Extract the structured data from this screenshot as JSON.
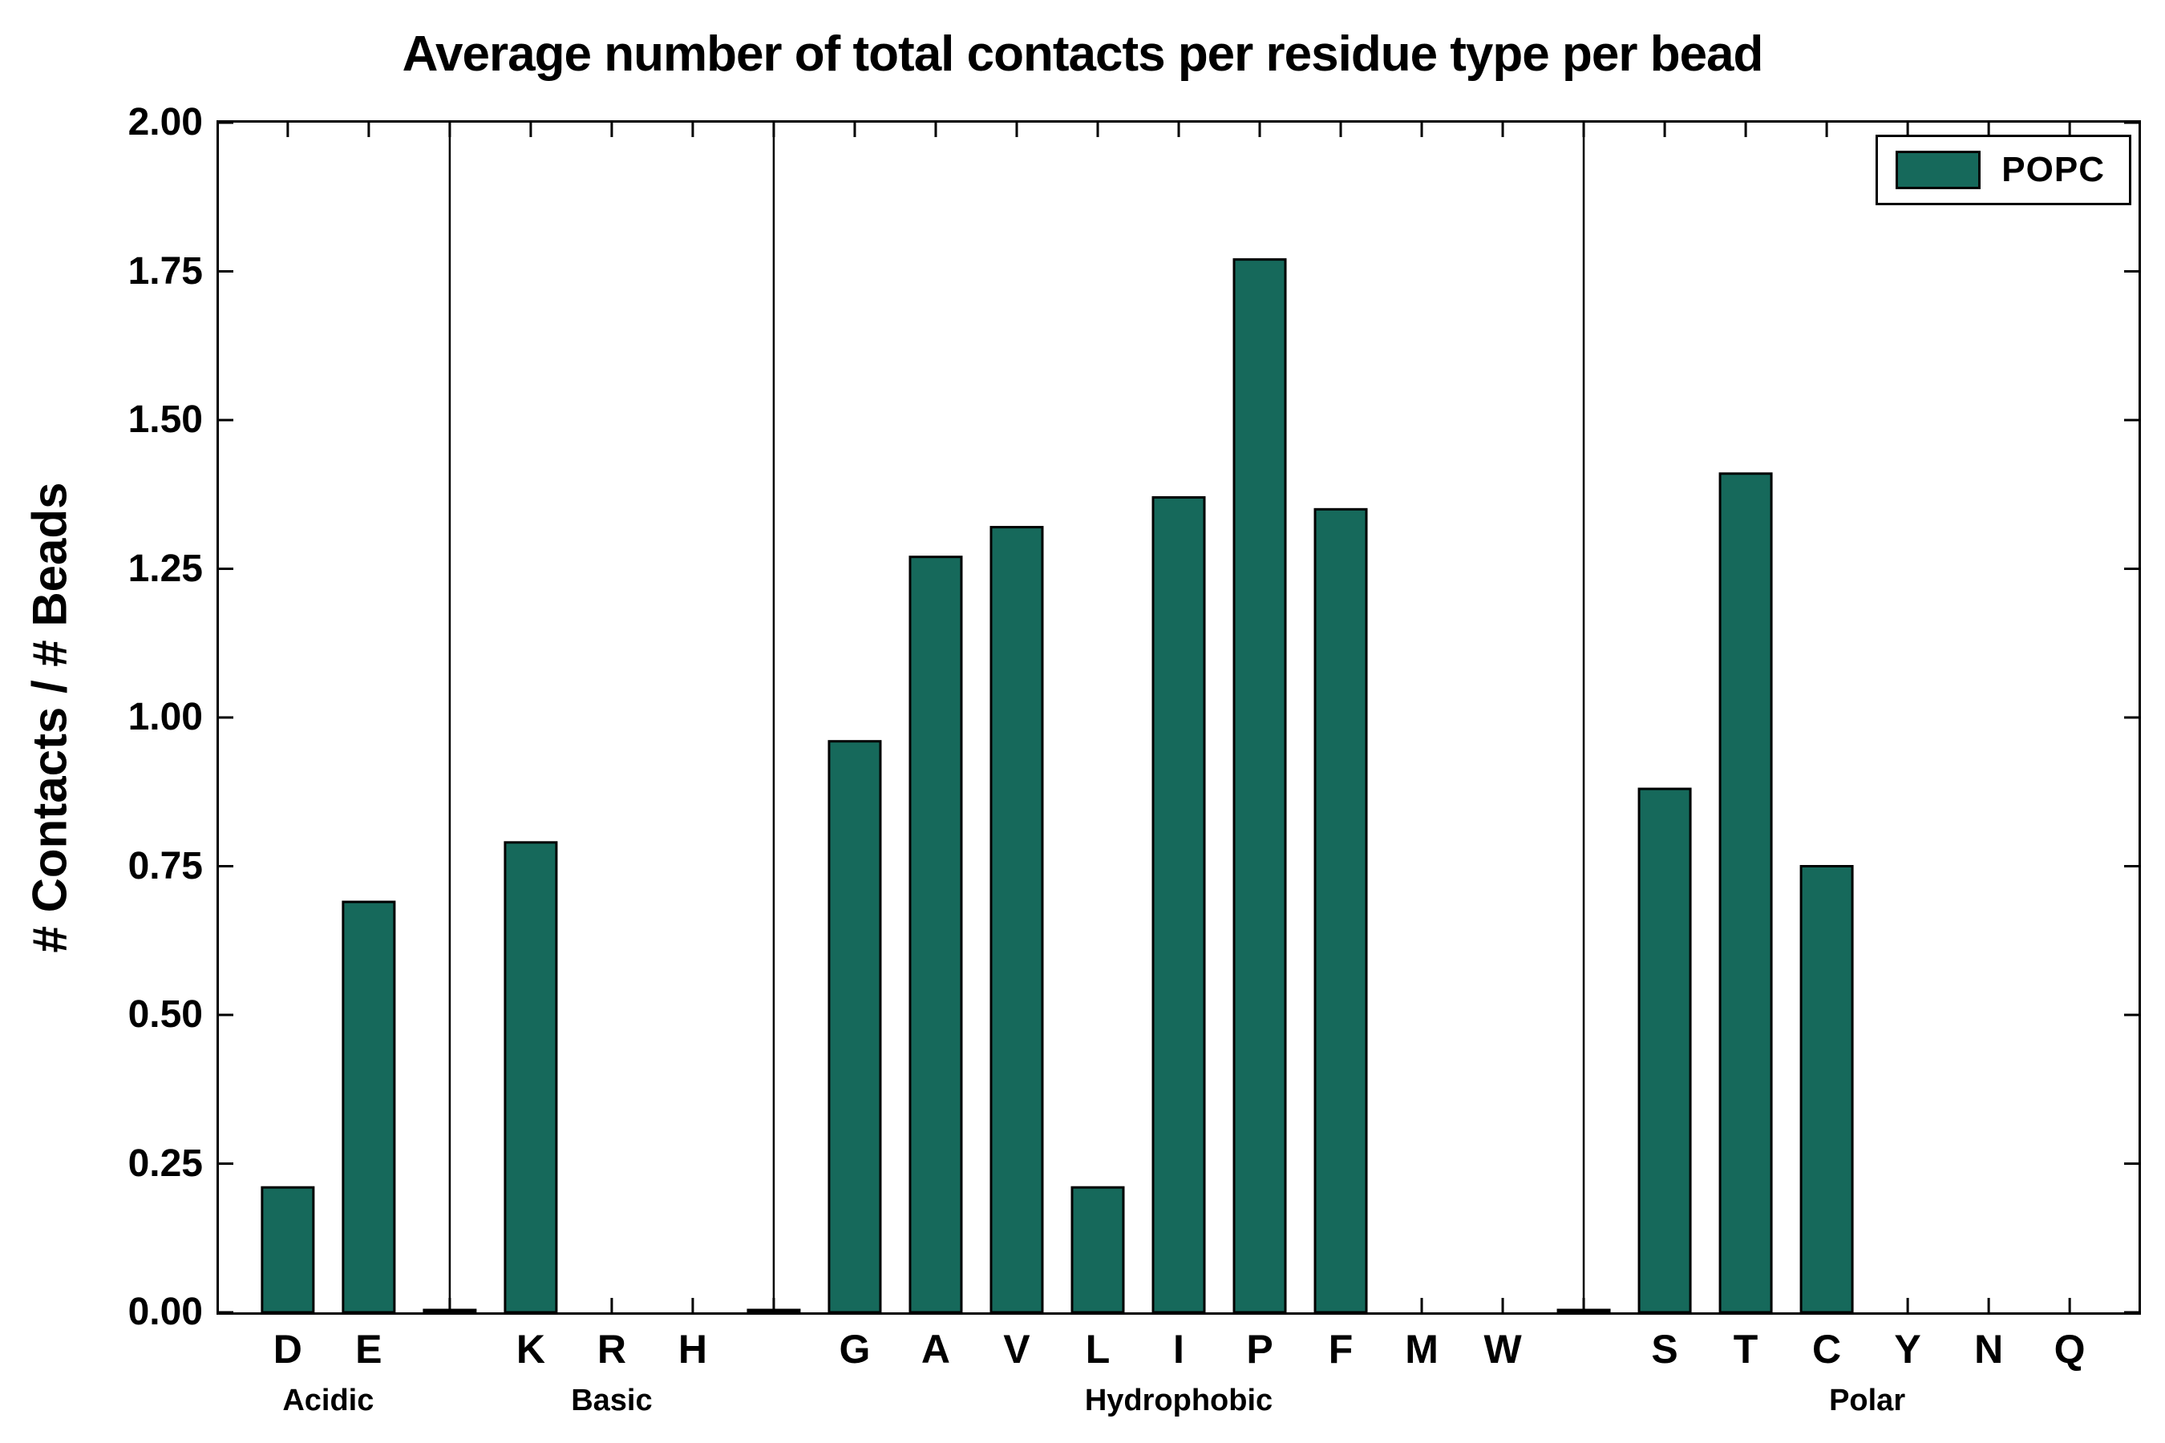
{
  "chart_data": {
    "type": "bar",
    "title": "Average number of total contacts per residue type per bead",
    "ylabel": "# Contacts / # Beads",
    "xlabel": "",
    "ylim": [
      0.0,
      2.0
    ],
    "ytick_step": 0.25,
    "ytick_labels": [
      "0.00",
      "0.25",
      "0.50",
      "0.75",
      "1.00",
      "1.25",
      "1.50",
      "1.75",
      "2.00"
    ],
    "bar_color": "#16695b",
    "bar_edge_color": "#000000",
    "grid": false,
    "legend": {
      "label": "POPC",
      "position": "upper right"
    },
    "gap_marker_value": 0.004,
    "groups": [
      {
        "name": "Acidic",
        "categories": [
          "D",
          "E"
        ],
        "values": [
          0.21,
          0.69
        ]
      },
      {
        "name": "Basic",
        "categories": [
          "K",
          "R",
          "H"
        ],
        "values": [
          0.79,
          0.0,
          0.0
        ]
      },
      {
        "name": "Hydrophobic",
        "categories": [
          "G",
          "A",
          "V",
          "L",
          "I",
          "P",
          "F",
          "M",
          "W"
        ],
        "values": [
          0.96,
          1.27,
          1.32,
          0.21,
          1.37,
          1.77,
          1.35,
          0.0,
          0.0
        ]
      },
      {
        "name": "Polar",
        "categories": [
          "S",
          "T",
          "C",
          "Y",
          "N",
          "Q"
        ],
        "values": [
          0.88,
          1.41,
          0.75,
          0.0,
          0.0,
          0.0
        ]
      }
    ]
  }
}
